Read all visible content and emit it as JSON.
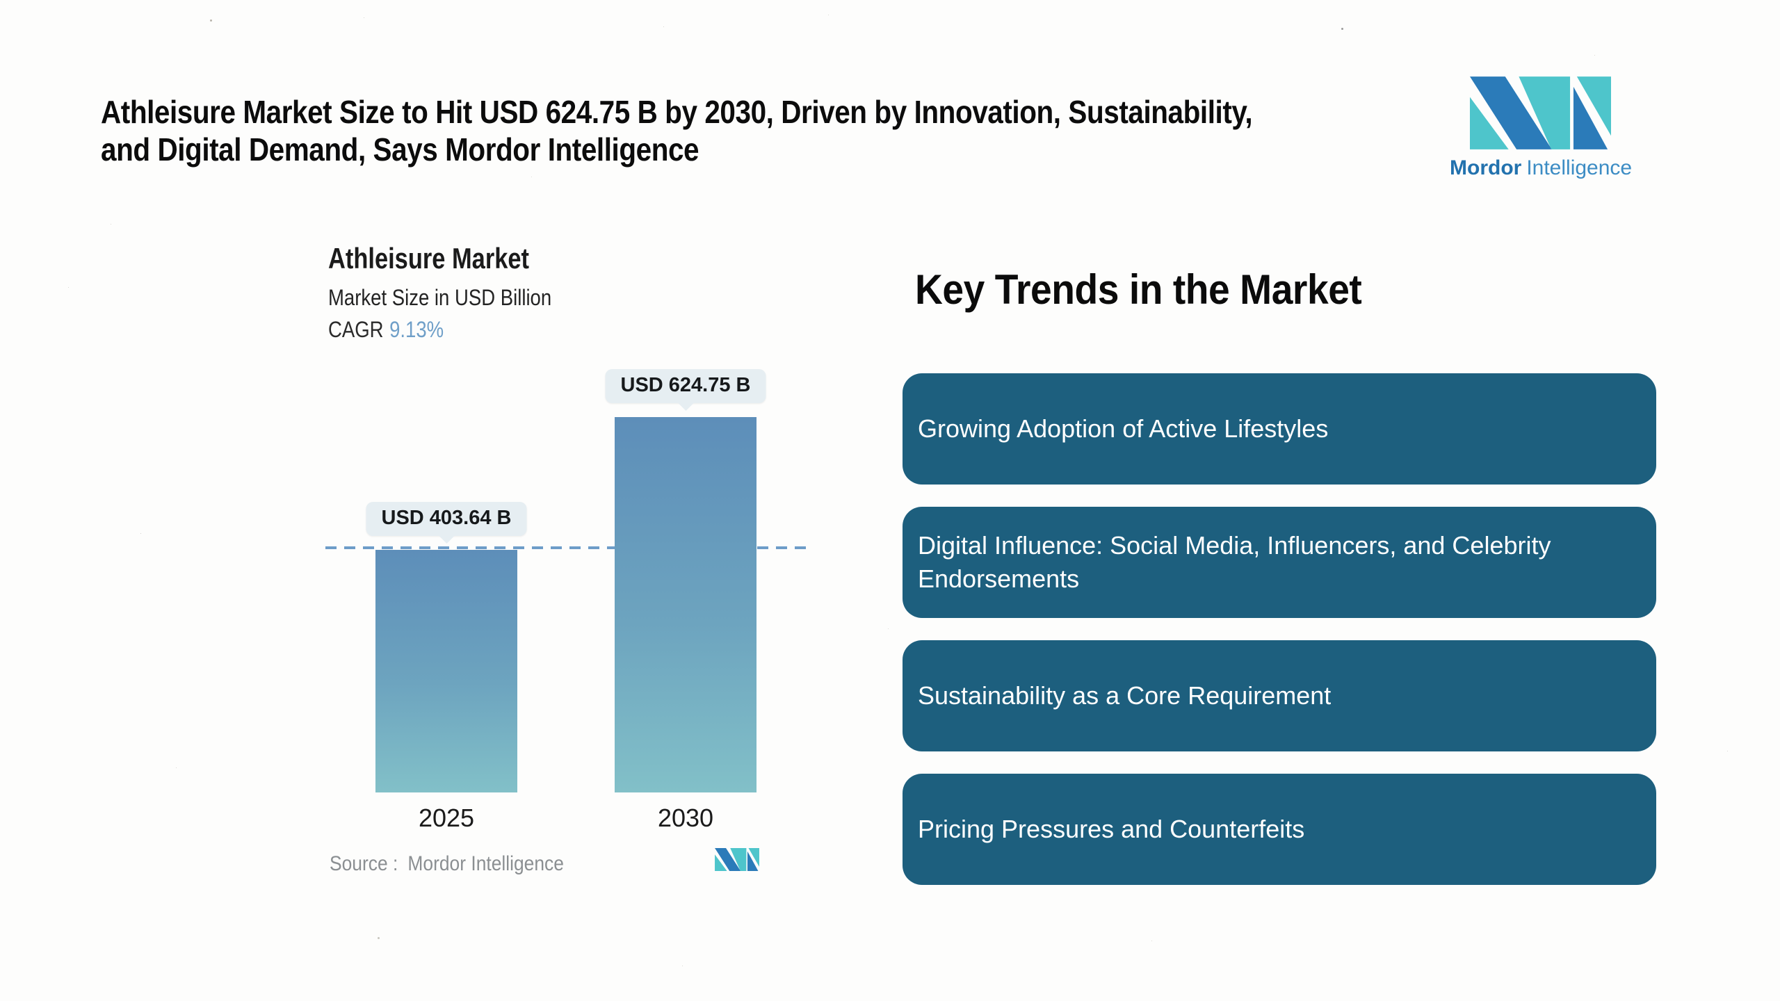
{
  "headline": {
    "lines": [
      "Athleisure Market Size to Hit USD 624.75 B by 2030, Driven by Innovation, Sustainability,",
      "and Digital Demand, Says Mordor Intelligence"
    ]
  },
  "brand": {
    "name_bold": "Mordor",
    "name_regular": "Intelligence",
    "logo_blue": "#2b7bb9",
    "logo_teal": "#4ec5cb"
  },
  "chart": {
    "title": "Athleisure Market",
    "subtitle": "Market Size in USD Billion",
    "cagr_label": "CAGR",
    "cagr_value": "9.13%",
    "bars": [
      {
        "year": "2025",
        "label": "USD 403.64 B"
      },
      {
        "year": "2030",
        "label": "USD 624.75 B"
      }
    ],
    "source_label": "Source :",
    "source_value": "Mordor Intelligence"
  },
  "chart_data": {
    "type": "bar",
    "title": "Athleisure Market",
    "subtitle": "Market Size in USD Billion",
    "unit": "USD Billion",
    "cagr": "9.13%",
    "categories": [
      "2025",
      "2030"
    ],
    "values": [
      403.64,
      624.75
    ],
    "data_labels": [
      "USD 403.64 B",
      "USD 624.75 B"
    ],
    "ylim": [
      0,
      624.75
    ],
    "grid": false,
    "legend": false,
    "annotations": [
      "horizontal dashed reference line at the 2025 value (USD 403.64 B)"
    ],
    "bar_gradient_top": "#5d8eb9",
    "bar_gradient_bottom": "#82c0c8",
    "dashed_line_color": "#6d9cc8",
    "label_bubble_bg": "#e6eef2",
    "source": "Mordor Intelligence"
  },
  "trends": {
    "heading": "Key Trends in the Market",
    "items": [
      "Growing Adoption of Active Lifestyles",
      "Digital Influence: Social Media, Influencers, and Celebrity Endorsements",
      "Sustainability as a Core Requirement",
      "Pricing Pressures and Counterfeits"
    ],
    "box_color": "#1d5f7e",
    "text_color": "#ffffff"
  },
  "colors": {
    "background": "#fdfdfc",
    "headline_text": "#0c0c0c",
    "cagr_value_blue": "#6f9fc8",
    "source_gray": "#8b8f92",
    "wordmark_bold_blue": "#2272ae",
    "wordmark_regular_blue": "#3c8cc4"
  }
}
